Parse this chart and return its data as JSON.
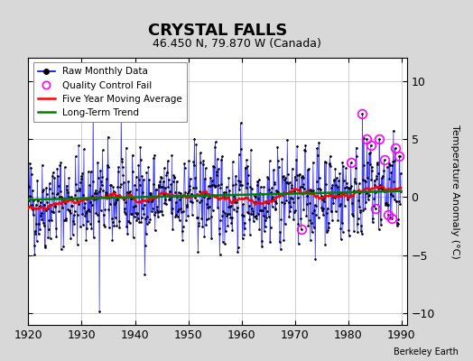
{
  "title": "CRYSTAL FALLS",
  "subtitle": "46.450 N, 79.870 W (Canada)",
  "ylabel": "Temperature Anomaly (°C)",
  "credit": "Berkeley Earth",
  "xlim": [
    1920,
    1991
  ],
  "ylim": [
    -11,
    12
  ],
  "yticks": [
    -10,
    -5,
    0,
    5,
    10
  ],
  "xticks": [
    1920,
    1930,
    1940,
    1950,
    1960,
    1970,
    1980,
    1990
  ],
  "bg_color": "#d8d8d8",
  "plot_bg_color": "#ffffff",
  "seed": 42,
  "title_fontsize": 13,
  "subtitle_fontsize": 9,
  "tick_fontsize": 9,
  "ylabel_fontsize": 8,
  "legend_fontsize": 7.5,
  "credit_fontsize": 7
}
